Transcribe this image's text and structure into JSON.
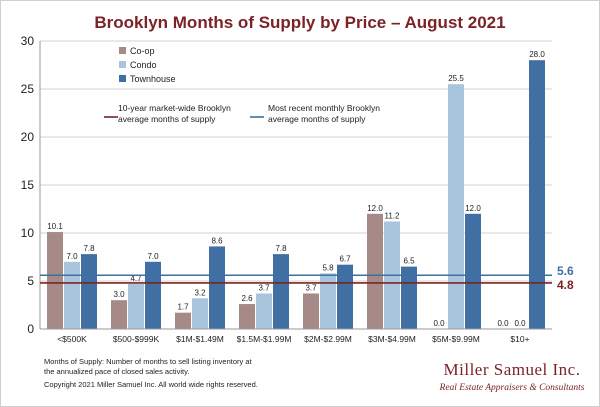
{
  "chart_data": {
    "type": "bar",
    "title": "Brooklyn Months of Supply by Price – August 2021",
    "categories": [
      "<$500K",
      "$500-$999K",
      "$1M-$1.49M",
      "$1.5M-$1.99M",
      "$2M-$2.99M",
      "$3M-$4.99M",
      "$5M-$9.99M",
      "$10+"
    ],
    "series": [
      {
        "name": "Co-op",
        "color": "#a58a88",
        "values": [
          10.1,
          3.0,
          1.7,
          2.6,
          3.7,
          12.0,
          0.0,
          0.0
        ],
        "labels": [
          "10.1",
          "3.0",
          "1.7",
          "2.6",
          "3.7",
          "12.0",
          "0.0",
          "0.0"
        ]
      },
      {
        "name": "Condo",
        "color": "#a9c5dd",
        "values": [
          7.0,
          4.7,
          3.2,
          3.7,
          5.8,
          11.2,
          25.5,
          0.0
        ],
        "labels": [
          "7.0",
          "4.7",
          "3.2",
          "3.7",
          "5.8",
          "11.2",
          "25.5",
          "0.0"
        ]
      },
      {
        "name": "Townhouse",
        "color": "#3f6fa3",
        "values": [
          7.8,
          7.0,
          8.6,
          7.8,
          6.7,
          6.5,
          12.0,
          28.0
        ],
        "labels": [
          "7.8",
          "7.0",
          "8.6",
          "7.8",
          "6.7",
          "6.5",
          "12.0",
          "28.0"
        ]
      }
    ],
    "ylim": [
      0,
      30
    ],
    "yticks": [
      0,
      5,
      10,
      15,
      20,
      25,
      30
    ],
    "xlabel": "",
    "ylabel": "",
    "reference_lines": [
      {
        "name": "10-year market-wide Brooklyn average months of supply",
        "legend_lines": [
          "10-year market-wide Brooklyn",
          "average months of supply"
        ],
        "value": 4.8,
        "label": "4.8",
        "color": "#7b2327"
      },
      {
        "name": "Most recent monthly Brooklyn average months of supply",
        "legend_lines": [
          "Most recent monthly Brooklyn",
          "average months of supply"
        ],
        "value": 5.6,
        "label": "5.6",
        "color": "#3f6fa3"
      }
    ]
  },
  "footnote": {
    "lines": [
      "Months of Supply: Number of months to sell listing inventory at",
      "the annualized pace of closed sales activity."
    ],
    "copyright": "Copyright 2021 Miller Samuel Inc.  All world wide rights reserved."
  },
  "brand": {
    "name": "Miller Samuel Inc.",
    "tagline": "Real Estate Appraisers & Consultants"
  }
}
